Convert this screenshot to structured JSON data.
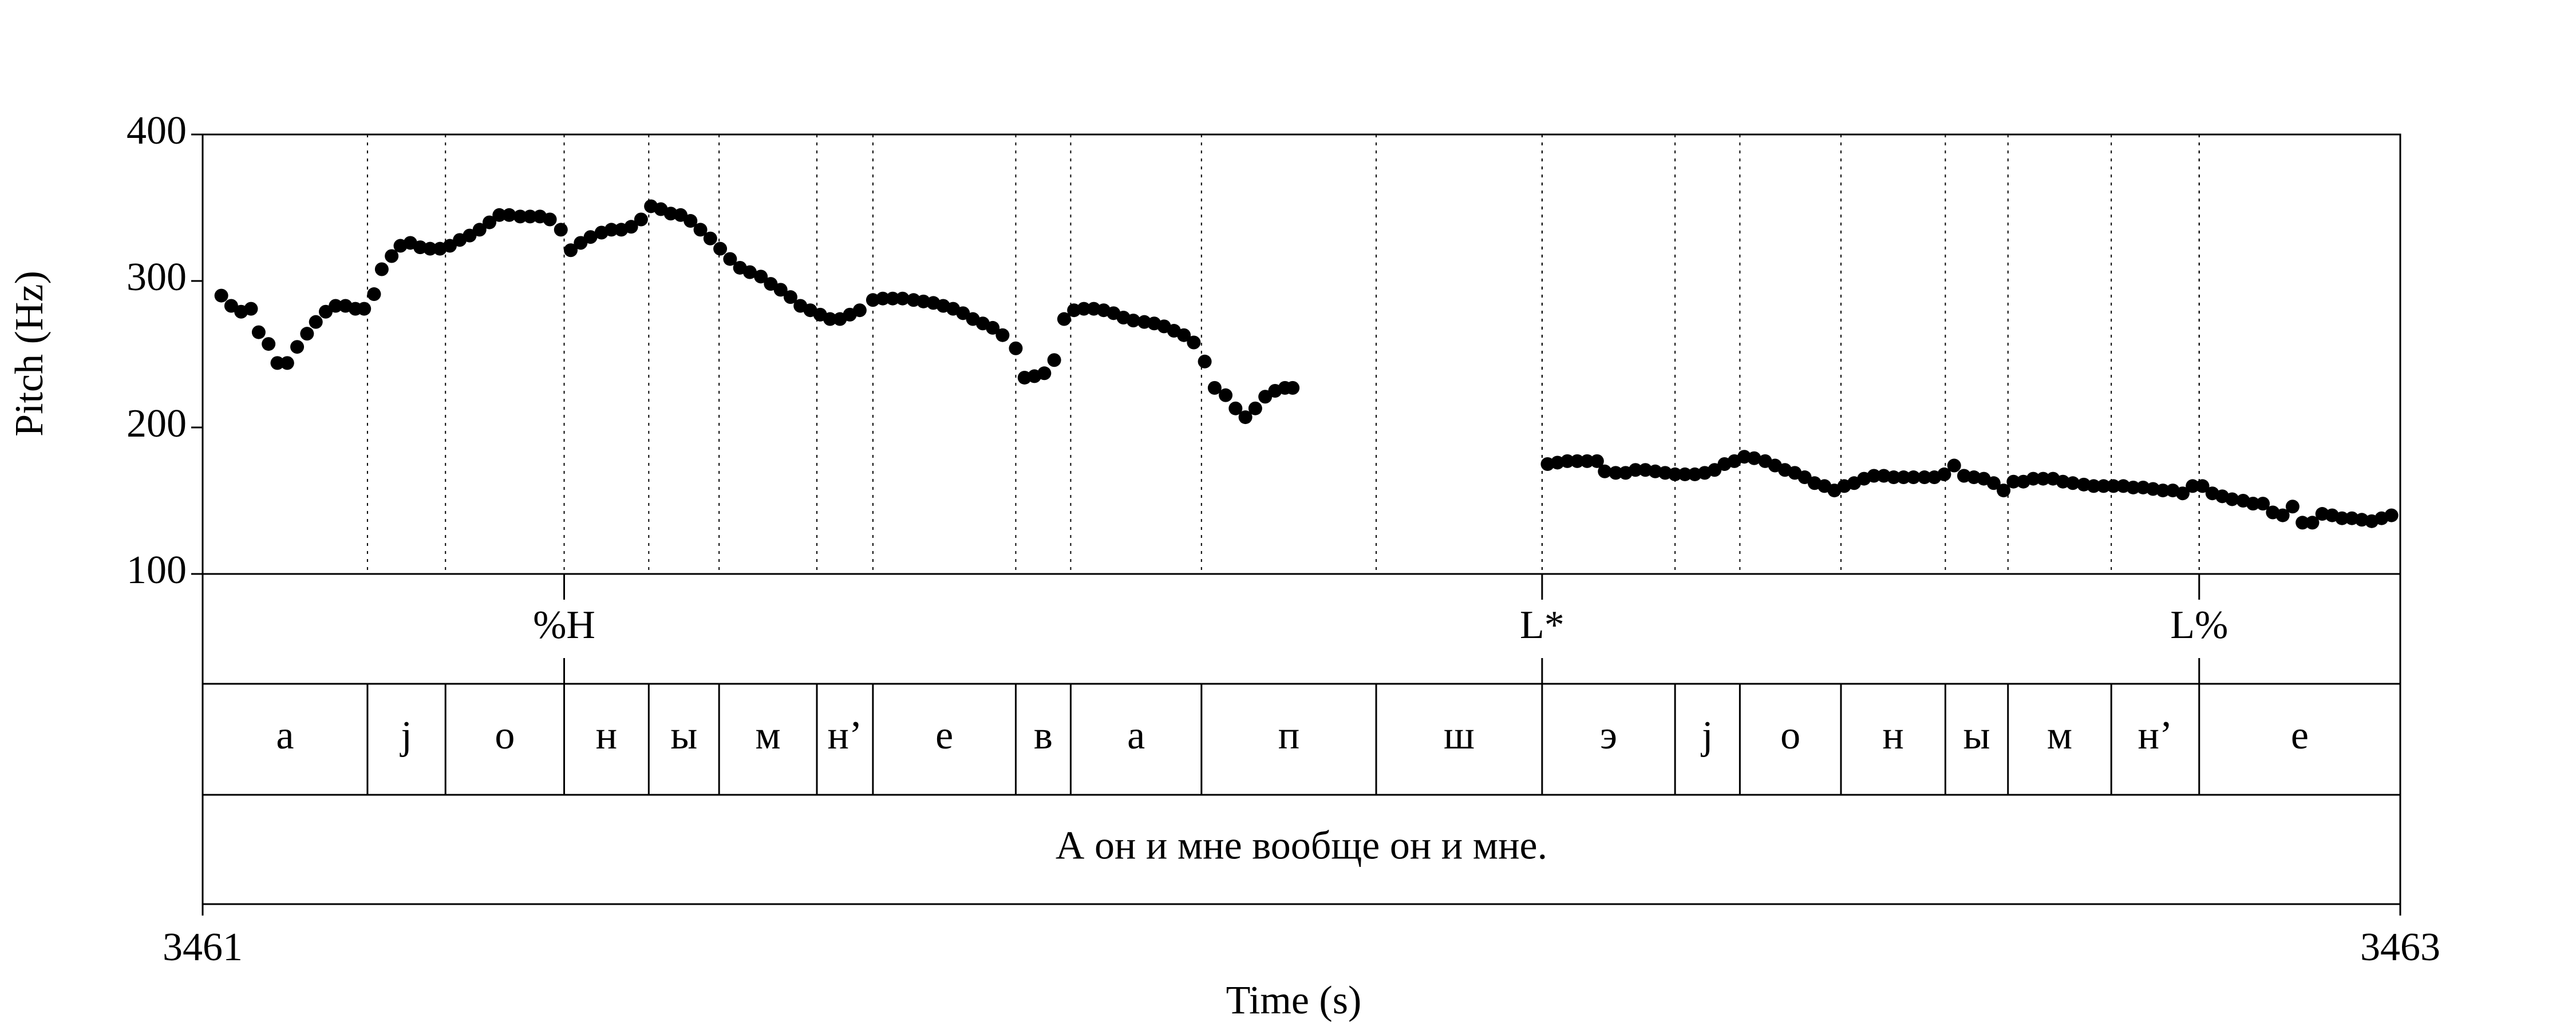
{
  "chart_data": {
    "type": "scatter",
    "x_label": "Time (s)",
    "y_label": "Pitch (Hz)",
    "xlim": [
      3461,
      3463
    ],
    "xticks": [
      3461,
      3463
    ],
    "ylim": [
      100,
      400
    ],
    "yticks": [
      100,
      200,
      300,
      400
    ],
    "color": "#000000",
    "x": [
      3461.017,
      3461.026,
      3461.035,
      3461.044,
      3461.051,
      3461.06,
      3461.068,
      3461.077,
      3461.086,
      3461.095,
      3461.103,
      3461.112,
      3461.121,
      3461.13,
      3461.139,
      3461.147,
      3461.156,
      3461.163,
      3461.172,
      3461.18,
      3461.189,
      3461.198,
      3461.207,
      3461.216,
      3461.225,
      3461.234,
      3461.243,
      3461.252,
      3461.261,
      3461.27,
      3461.279,
      3461.289,
      3461.298,
      3461.307,
      3461.316,
      3461.326,
      3461.335,
      3461.344,
      3461.353,
      3461.363,
      3461.372,
      3461.381,
      3461.39,
      3461.399,
      3461.408,
      3461.417,
      3461.426,
      3461.435,
      3461.444,
      3461.453,
      3461.462,
      3461.471,
      3461.48,
      3461.489,
      3461.498,
      3461.508,
      3461.517,
      3461.526,
      3461.535,
      3461.544,
      3461.553,
      3461.562,
      3461.571,
      3461.58,
      3461.589,
      3461.598,
      3461.61,
      3461.619,
      3461.628,
      3461.637,
      3461.647,
      3461.656,
      3461.665,
      3461.674,
      3461.683,
      3461.692,
      3461.701,
      3461.71,
      3461.719,
      3461.728,
      3461.74,
      3461.748,
      3461.757,
      3461.766,
      3461.775,
      3461.784,
      3461.793,
      3461.802,
      3461.811,
      3461.82,
      3461.829,
      3461.838,
      3461.847,
      3461.857,
      3461.866,
      3461.875,
      3461.884,
      3461.893,
      3461.902,
      3461.912,
      3461.921,
      3461.931,
      3461.94,
      3461.949,
      3461.958,
      3461.967,
      3461.976,
      3461.985,
      3461.992,
      3462.224,
      3462.233,
      3462.242,
      3462.251,
      3462.26,
      3462.269,
      3462.276,
      3462.286,
      3462.295,
      3462.304,
      3462.313,
      3462.322,
      3462.331,
      3462.34,
      3462.349,
      3462.358,
      3462.367,
      3462.376,
      3462.385,
      3462.394,
      3462.403,
      3462.412,
      3462.422,
      3462.431,
      3462.44,
      3462.449,
      3462.458,
      3462.467,
      3462.476,
      3462.485,
      3462.494,
      3462.503,
      3462.512,
      3462.521,
      3462.53,
      3462.539,
      3462.548,
      3462.557,
      3462.567,
      3462.576,
      3462.585,
      3462.594,
      3462.603,
      3462.612,
      3462.621,
      3462.63,
      3462.639,
      3462.648,
      3462.657,
      3462.666,
      3462.675,
      3462.684,
      3462.693,
      3462.702,
      3462.712,
      3462.721,
      3462.73,
      3462.739,
      3462.748,
      3462.757,
      3462.766,
      3462.775,
      3462.784,
      3462.793,
      3462.802,
      3462.811,
      3462.82,
      3462.829,
      3462.838,
      3462.847,
      3462.857,
      3462.866,
      3462.875,
      3462.884,
      3462.893,
      3462.902,
      3462.911,
      3462.92,
      3462.929,
      3462.938,
      3462.947,
      3462.956,
      3462.965,
      3462.974,
      3462.983,
      3462.992
    ],
    "values": [
      290,
      283,
      279,
      281,
      265,
      257,
      244,
      244,
      255,
      264,
      272,
      279,
      283,
      283,
      281,
      281,
      291,
      308,
      317,
      324,
      326,
      323,
      322,
      322,
      324,
      328,
      331,
      335,
      340,
      345,
      345,
      344,
      344,
      344,
      342,
      335,
      321,
      326,
      330,
      333,
      335,
      335,
      337,
      342,
      351,
      349,
      346,
      345,
      341,
      335,
      329,
      322,
      315,
      309,
      306,
      303,
      298,
      294,
      289,
      283,
      280,
      277,
      274,
      274,
      277,
      280,
      287,
      288,
      288,
      288,
      287,
      286,
      285,
      283,
      281,
      278,
      274,
      271,
      268,
      263,
      254,
      234,
      235,
      237,
      246,
      274,
      280,
      281,
      281,
      280,
      278,
      275,
      273,
      272,
      271,
      269,
      266,
      263,
      258,
      245,
      227,
      222,
      213,
      207,
      213,
      221,
      225,
      227,
      227,
      175,
      176,
      177,
      177,
      177,
      177,
      170,
      169,
      169,
      171,
      171,
      170,
      169,
      168,
      168,
      168,
      169,
      171,
      175,
      177,
      180,
      179,
      177,
      174,
      171,
      169,
      166,
      162,
      160,
      157,
      160,
      162,
      165,
      167,
      167,
      166,
      166,
      166,
      166,
      166,
      168,
      174,
      167,
      166,
      165,
      162,
      157,
      163,
      163,
      165,
      165,
      165,
      163,
      162,
      161,
      160,
      160,
      160,
      160,
      159,
      159,
      158,
      157,
      157,
      155,
      160,
      160,
      155,
      153,
      151,
      150,
      148,
      148,
      142,
      140,
      146,
      135,
      135,
      141,
      140,
      138,
      138,
      137,
      136,
      138,
      140
    ],
    "tiers": [
      {
        "points": [
          3461.329,
          3462.219,
          3462.817
        ],
        "labels": [
          "%H",
          "L*",
          "L%"
        ]
      },
      {
        "boundaries": [
          3461.15,
          3461.221,
          3461.329,
          3461.406,
          3461.47,
          3461.559,
          3461.61,
          3461.74,
          3461.79,
          3461.909,
          3462.068,
          3462.219,
          3462.34,
          3462.399,
          3462.491,
          3462.586,
          3462.643,
          3462.737,
          3462.817
        ],
        "labels": [
          "a",
          "j",
          "o",
          "н",
          "ы",
          "м",
          "н’",
          "е",
          "в",
          "а",
          "п",
          "ш",
          "э",
          "j",
          "о",
          "н",
          "ы",
          "м",
          "н’",
          "е"
        ]
      },
      {
        "labels": [
          "А он и мне вообще он и мне."
        ]
      }
    ]
  }
}
